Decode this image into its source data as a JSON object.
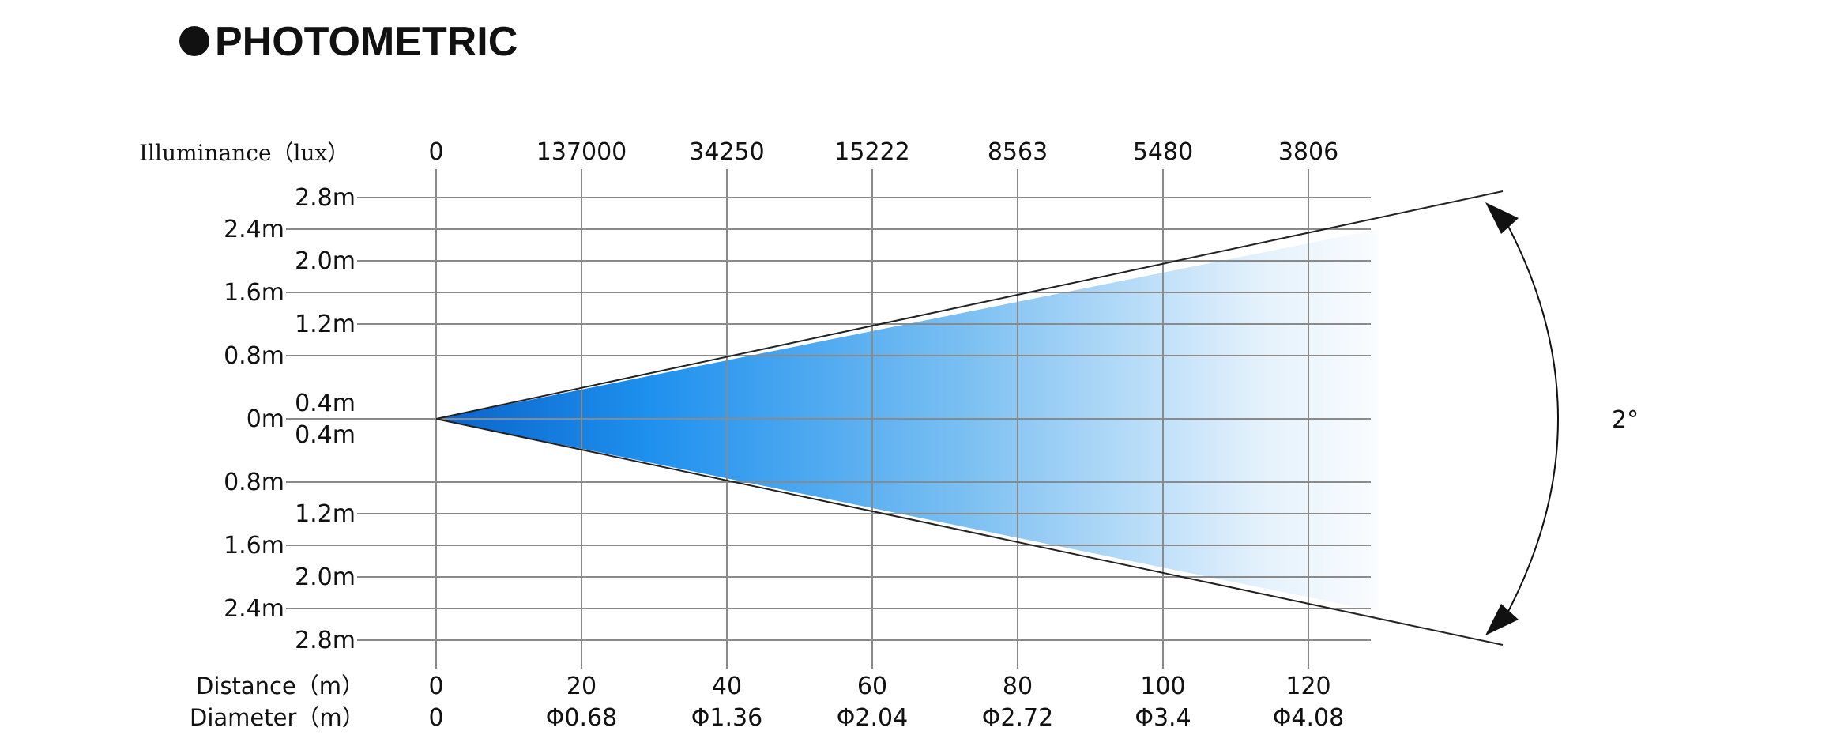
{
  "heading": "PHOTOMETRIC",
  "heading_bullet": "●",
  "illuminance": {
    "label": "Illuminance（lux）",
    "values": [
      "0",
      "137000",
      "34250",
      "15222",
      "8563",
      "5480",
      "3806"
    ]
  },
  "distance": {
    "label": "Distance（m）",
    "values": [
      "0",
      "20",
      "40",
      "60",
      "80",
      "100",
      "120"
    ]
  },
  "diameter": {
    "label": "Diameter（m）",
    "values": [
      "0",
      "Φ0.68",
      "Φ1.36",
      "Φ2.04",
      "Φ2.72",
      "Φ3.4",
      "Φ4.08"
    ]
  },
  "outer_scale": [
    "2.4m",
    "1.6m",
    "0.8m",
    "0m",
    "0.8m",
    "1.6m",
    "2.4m"
  ],
  "inner_scale": [
    "2.8m",
    "2.0m",
    "1.2m",
    "0.4m",
    "0.4m",
    "1.2m",
    "2.0m",
    "2.8m"
  ],
  "beam_angle": "2°",
  "colors": {
    "beam_dark": "#0a62c8",
    "beam_mid": "#1e90ee",
    "beam_light": "#ffffff",
    "grid": "#8a8a8a",
    "text": "#111111"
  }
}
